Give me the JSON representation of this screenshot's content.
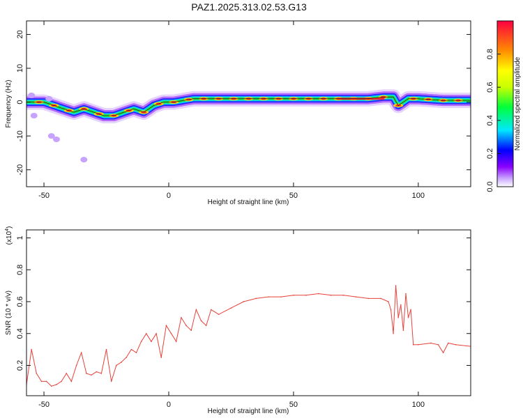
{
  "title": "PAZ1.2025.313.02.53.G13",
  "chart_data": [
    {
      "type": "heatmap",
      "xlabel": "Height of straight line (km)",
      "ylabel": "Frequency (Hz)",
      "xlim": [
        -57,
        121
      ],
      "ylim": [
        -25,
        24
      ],
      "xticks": [
        -50,
        0,
        50,
        100
      ],
      "yticks": [
        -20,
        -10,
        0,
        10,
        20
      ],
      "colorbar": {
        "label": "Normalized spectral amplitude",
        "range": [
          0,
          1
        ],
        "ticks": [
          0.0,
          0.2,
          0.4,
          0.6,
          0.8
        ]
      },
      "ridge": {
        "x": [
          -54,
          -50,
          -46,
          -42,
          -38,
          -34,
          -30,
          -26,
          -22,
          -18,
          -14,
          -10,
          -6,
          -2,
          2,
          6,
          10,
          14,
          20,
          30,
          40,
          50,
          60,
          70,
          80,
          86,
          90,
          92,
          96,
          100,
          110,
          121
        ],
        "y": [
          0,
          0,
          -1,
          -2,
          -3,
          -2,
          -3,
          -4,
          -4,
          -3,
          -2,
          -3,
          -1,
          0,
          0,
          0.5,
          1,
          1,
          1,
          1,
          1,
          1,
          1,
          1,
          1,
          1.5,
          1.5,
          -1,
          1,
          1,
          0.5,
          0.5
        ]
      },
      "blobs": [
        {
          "x": -55,
          "y": 2
        },
        {
          "x": -54,
          "y": -4
        },
        {
          "x": -48,
          "y": 1
        },
        {
          "x": -47,
          "y": -10
        },
        {
          "x": -45,
          "y": -11
        },
        {
          "x": -34,
          "y": -17
        }
      ],
      "grid": false
    },
    {
      "type": "line",
      "xlabel": "Height of straight line (km)",
      "ylabel": "SNR (10 * v/v)",
      "yscale_label": "(x10",
      "yscale_exponent": "4",
      "xlim": [
        -57,
        121
      ],
      "ylim": [
        0.01,
        1.05
      ],
      "xticks": [
        -50,
        0,
        50,
        100
      ],
      "yticks": [
        0.2,
        0.4,
        0.6,
        0.8,
        1.0
      ],
      "color": "#e8403a",
      "series": [
        {
          "x": [
            -57,
            -55,
            -53,
            -51,
            -49,
            -47,
            -45,
            -43,
            -41,
            -39,
            -37,
            -35,
            -33,
            -31,
            -29,
            -27,
            -25,
            -23,
            -21,
            -19,
            -17,
            -15,
            -13,
            -11,
            -9,
            -7,
            -5,
            -3,
            -1,
            1,
            3,
            5,
            7,
            9,
            11,
            13,
            15,
            17,
            20,
            25,
            30,
            35,
            40,
            45,
            50,
            55,
            60,
            65,
            70,
            75,
            80,
            85,
            88,
            89,
            90,
            91,
            92,
            93,
            94,
            95,
            96,
            97,
            98,
            100,
            105,
            108,
            110,
            112,
            115,
            121
          ],
          "y": [
            0.08,
            0.3,
            0.15,
            0.1,
            0.1,
            0.07,
            0.08,
            0.1,
            0.15,
            0.1,
            0.2,
            0.28,
            0.15,
            0.14,
            0.16,
            0.15,
            0.3,
            0.1,
            0.2,
            0.22,
            0.25,
            0.3,
            0.28,
            0.35,
            0.4,
            0.35,
            0.4,
            0.25,
            0.45,
            0.4,
            0.35,
            0.5,
            0.45,
            0.42,
            0.55,
            0.48,
            0.45,
            0.55,
            0.52,
            0.56,
            0.6,
            0.62,
            0.63,
            0.63,
            0.64,
            0.64,
            0.65,
            0.64,
            0.64,
            0.63,
            0.62,
            0.62,
            0.6,
            0.55,
            0.4,
            0.7,
            0.5,
            0.58,
            0.42,
            0.65,
            0.5,
            0.55,
            0.33,
            0.33,
            0.34,
            0.33,
            0.28,
            0.34,
            0.33,
            0.32
          ]
        }
      ],
      "grid": false
    }
  ]
}
